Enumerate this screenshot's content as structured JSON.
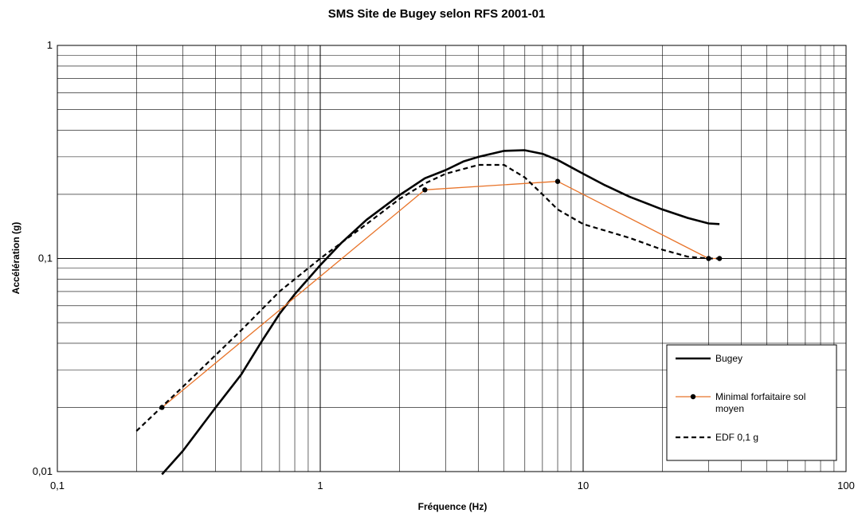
{
  "chart_data": {
    "type": "line",
    "title": "SMS Site de Bugey selon RFS 2001-01",
    "xlabel": "Fréquence (Hz)",
    "ylabel": "Accélération (g)",
    "xscale": "log",
    "yscale": "log",
    "xlim": [
      0.1,
      100
    ],
    "ylim": [
      0.01,
      1
    ],
    "xticks": [
      "0,1",
      "1",
      "10",
      "100"
    ],
    "yticks": [
      "0,01",
      "0,1",
      "1"
    ],
    "grid": true,
    "legend_position": "bottom-right",
    "series": [
      {
        "name": "Bugey",
        "color": "#000000",
        "style": "solid-thick",
        "x": [
          0.25,
          0.3,
          0.4,
          0.5,
          0.6,
          0.7,
          0.8,
          1.0,
          1.2,
          1.5,
          2.0,
          2.5,
          3.0,
          3.5,
          4.0,
          5.0,
          6.0,
          7.0,
          8.0,
          10.0,
          12.0,
          15.0,
          20.0,
          25.0,
          30.0,
          33.0
        ],
        "y": [
          0.0097,
          0.0125,
          0.02,
          0.0285,
          0.041,
          0.055,
          0.068,
          0.093,
          0.118,
          0.152,
          0.198,
          0.238,
          0.26,
          0.285,
          0.3,
          0.32,
          0.322,
          0.31,
          0.29,
          0.25,
          0.222,
          0.195,
          0.17,
          0.155,
          0.146,
          0.145
        ]
      },
      {
        "name": "Minimal forfaitaire sol moyen",
        "color": "#e8742a",
        "style": "solid-markers",
        "x": [
          0.25,
          2.5,
          8.0,
          30.0,
          33.0
        ],
        "y": [
          0.02,
          0.21,
          0.23,
          0.1,
          0.1
        ]
      },
      {
        "name": "EDF 0,1 g",
        "color": "#000000",
        "style": "dashed",
        "x": [
          0.2,
          0.3,
          0.5,
          0.7,
          1.0,
          1.5,
          2.0,
          2.5,
          3.0,
          4.0,
          5.0,
          6.0,
          7.0,
          8.0,
          10.0,
          15.0,
          20.0,
          25.0,
          30.0,
          33.0
        ],
        "y": [
          0.0155,
          0.025,
          0.046,
          0.07,
          0.1,
          0.145,
          0.19,
          0.225,
          0.25,
          0.275,
          0.275,
          0.24,
          0.2,
          0.17,
          0.145,
          0.125,
          0.11,
          0.102,
          0.1,
          0.1
        ]
      }
    ]
  }
}
